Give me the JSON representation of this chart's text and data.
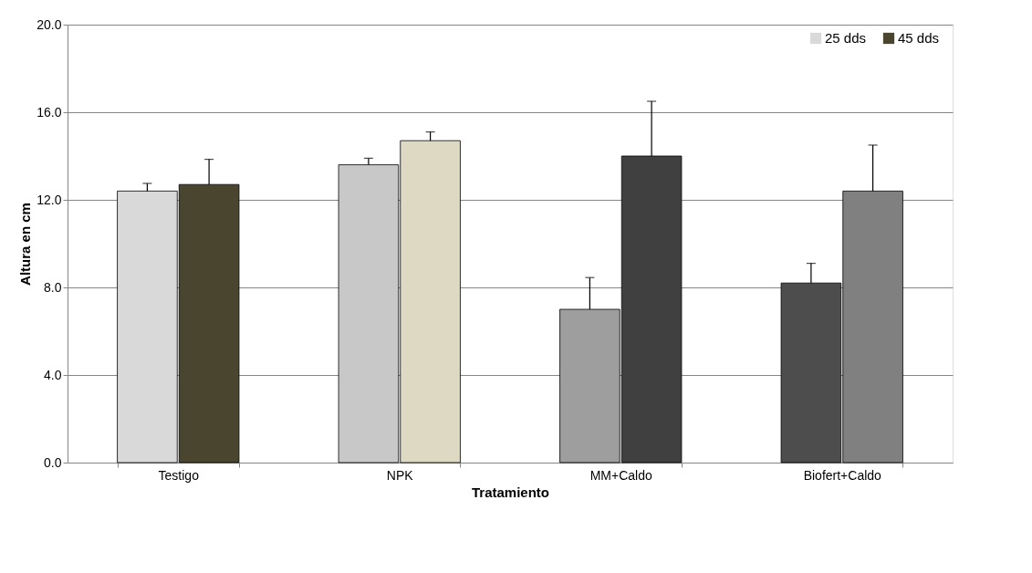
{
  "chart_data": {
    "type": "bar",
    "xlabel": "Tratamiento",
    "ylabel": "Altura en cm",
    "categories": [
      "Testigo",
      "NPK",
      "MM+Caldo",
      "Biofert+Caldo"
    ],
    "series": [
      {
        "name": "25 dds",
        "color": "#d9d9d9",
        "colors": [
          "#d9d9d9",
          "#c8c8c8",
          "#9e9e9e",
          "#4d4d4d"
        ],
        "values": [
          12.4,
          13.6,
          7.0,
          8.2
        ],
        "errors": [
          [
            12.4,
            12.75
          ],
          [
            13.6,
            13.9
          ],
          [
            7.0,
            8.45
          ],
          [
            8.2,
            9.1
          ]
        ]
      },
      {
        "name": "45 dds",
        "color": "#4a452f",
        "colors": [
          "#4a452f",
          "#ddd9c3",
          "#404040",
          "#808080"
        ],
        "values": [
          12.7,
          14.7,
          14.0,
          12.4
        ],
        "errors": [
          [
            12.7,
            13.85
          ],
          [
            14.7,
            15.1
          ],
          [
            14.0,
            16.5
          ],
          [
            12.4,
            14.5
          ]
        ]
      }
    ],
    "ylim": [
      0,
      20
    ],
    "yticks": [
      {
        "value": 0,
        "label": "0.0"
      },
      {
        "value": 4,
        "label": "4.0"
      },
      {
        "value": 8,
        "label": "8.0"
      },
      {
        "value": 12,
        "label": "12.0"
      },
      {
        "value": 16,
        "label": "16.0"
      },
      {
        "value": 20,
        "label": "20.0"
      }
    ],
    "grid": "y",
    "legend": "top right"
  }
}
